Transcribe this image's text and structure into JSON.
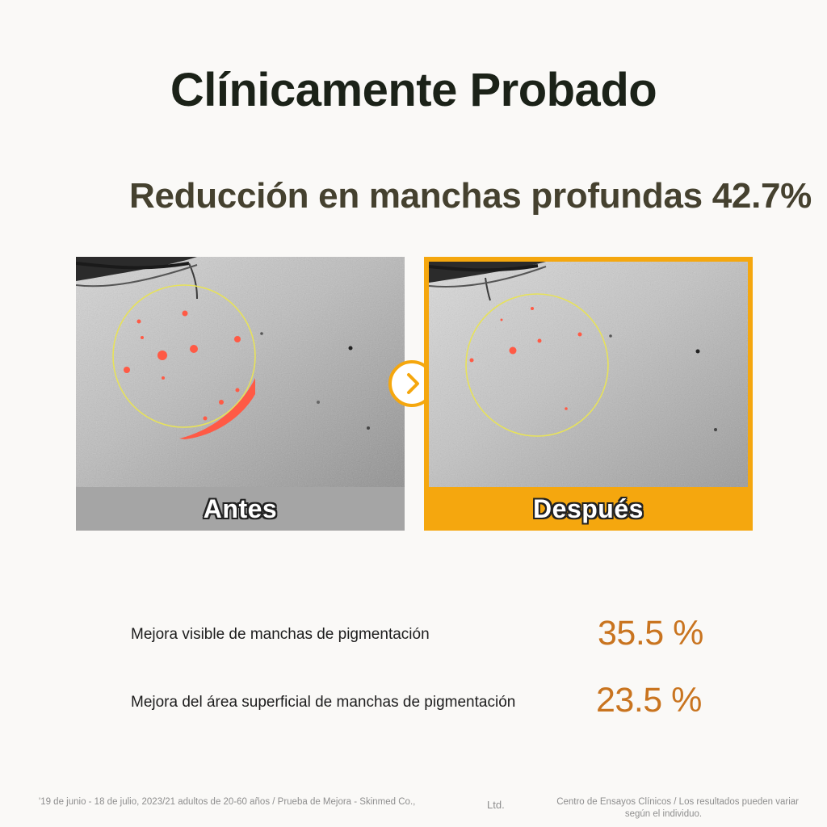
{
  "title": "Clínicamente Probado",
  "headline": "Reducción en manchas profundas 42.7%",
  "comparison": {
    "before_label": "Antes",
    "after_label": "Después",
    "next_icon": "chevron-right-icon",
    "colors": {
      "accent": "#f5a70e",
      "before_bar": "#a5a5a5",
      "spot_marker": "#ff5a45",
      "circle_outline": "#e7e25a"
    }
  },
  "stats": [
    {
      "label": "Mejora visible de manchas de pigmentación",
      "value": "35.5 %"
    },
    {
      "label": "Mejora del área superficial de manchas de pigmentación",
      "value": "23.5 %"
    }
  ],
  "footnote": {
    "left": "'19 de junio - 18 de julio, 2023/21 adultos de 20-60 años / Prueba de Mejora - Skinmed Co.,",
    "ltd": "Ltd.",
    "right_line1": "Centro de Ensayos Clínicos / Los resultados pueden variar",
    "right_line2": "según el individuo."
  }
}
